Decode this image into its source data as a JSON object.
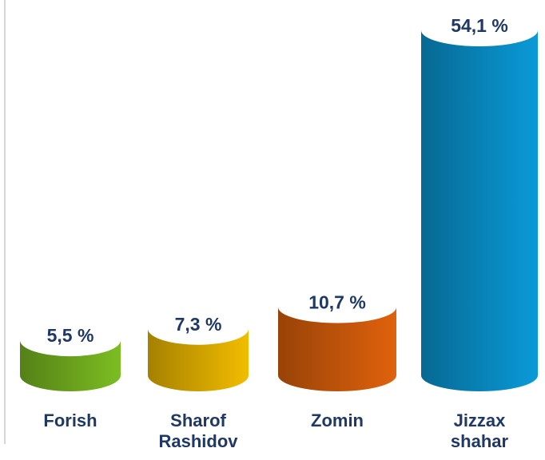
{
  "chart_data": {
    "type": "bar",
    "categories": [
      "Forish",
      "Sharof Rashidov",
      "Zomin",
      "Jizzax shahar"
    ],
    "values": [
      5.5,
      7.3,
      10.7,
      54.1
    ],
    "value_labels": [
      "5,5 %",
      "7,3 %",
      "10,7 %",
      "54,1 %"
    ],
    "colors": [
      "#7cbd22",
      "#f2bd00",
      "#e0620c",
      "#0a9ad8"
    ]
  }
}
